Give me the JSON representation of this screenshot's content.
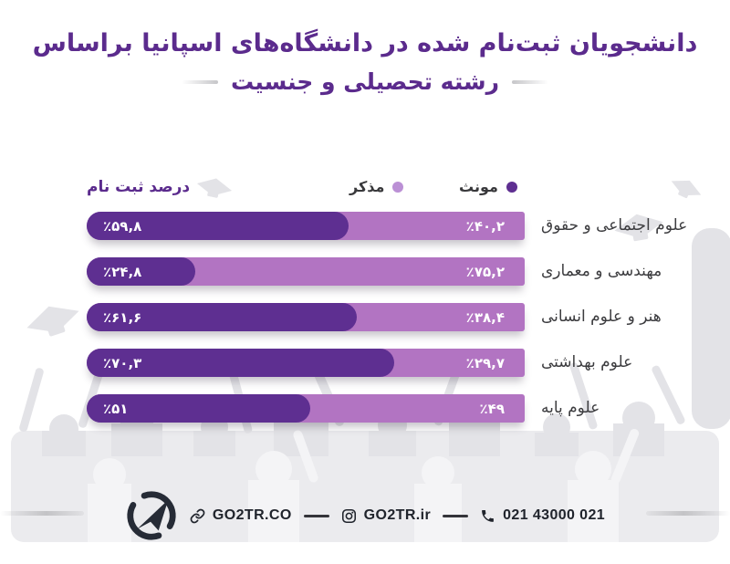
{
  "title": {
    "line1": "دانشجویان ثبت‌نام شده در دانشگاه‌های اسپانیا براساس",
    "line2": "رشته تحصیلی و جنسیت"
  },
  "legend": {
    "axis_label": "درصد ثبت نام",
    "items": [
      {
        "label": "مونث",
        "color": "#5e2f91"
      },
      {
        "label": "مذکر",
        "color": "#bb90d5"
      }
    ]
  },
  "chart_data": {
    "type": "bar",
    "orientation": "horizontal",
    "stacked": true,
    "title": "دانشجویان ثبت‌نام شده در دانشگاه‌های اسپانیا براساس رشته تحصیلی و جنسیت",
    "categories": [
      "علوم اجتماعی و حقوق",
      "مهندسی و معماری",
      "هنر و علوم انسانی",
      "علوم بهداشتی",
      "علوم پایه"
    ],
    "series": [
      {
        "name": "مونث",
        "color": "#5e2f91",
        "values": [
          59.8,
          24.8,
          61.6,
          70.3,
          51
        ],
        "labels": [
          "٪۵۹,۸",
          "٪۲۴,۸",
          "٪۶۱,۶",
          "٪۷۰,۳",
          "٪۵۱"
        ]
      },
      {
        "name": "مذکر",
        "color": "#b274c2",
        "values": [
          40.2,
          75.2,
          38.4,
          29.7,
          49
        ],
        "labels": [
          "٪۴۰,۲",
          "٪۷۵,۲",
          "٪۳۸,۴",
          "٪۲۹,۷",
          "٪۴۹"
        ]
      }
    ],
    "x_range": [
      0,
      100
    ],
    "value_format": "percent",
    "legend_position": "top",
    "grid": false
  },
  "footer": {
    "website": "GO2TR.CO",
    "instagram": "GO2TR.ir",
    "phone": "021 43000 021"
  },
  "colors": {
    "title_purple": "#5b2b8d",
    "bar_female": "#5e2f91",
    "bar_male": "#b274c2",
    "dot_male": "#bb90d5",
    "category_text": "#3c3c3f",
    "footer_text": "#20242c",
    "band_gray": "#ebebee",
    "watermark_gray": "#e3e3e7"
  }
}
